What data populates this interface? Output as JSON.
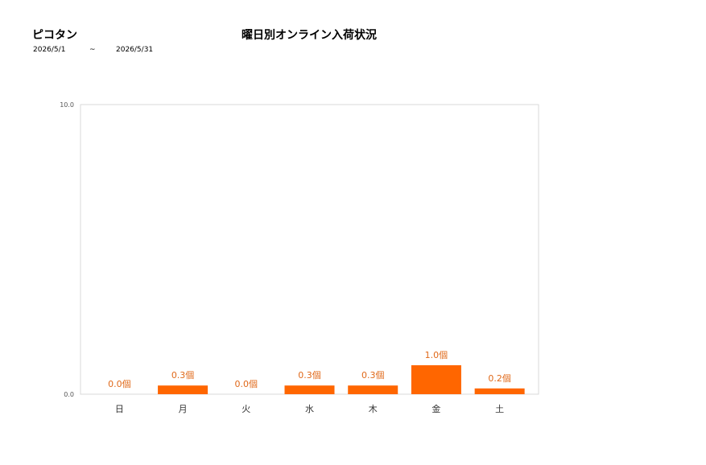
{
  "header": {
    "shop_name": "ピコタン",
    "title": "曜日別オンライン入荷状況",
    "date_start": "2026/5/1",
    "date_sep": "~",
    "date_end": "2026/5/31"
  },
  "colors": {
    "bar": "#ff6600",
    "label": "#e0691a",
    "frame": "#d9d9d9"
  },
  "chart_data": {
    "type": "bar",
    "categories": [
      "日",
      "月",
      "火",
      "水",
      "木",
      "金",
      "土"
    ],
    "values": [
      0.0,
      0.3,
      0.0,
      0.3,
      0.3,
      1.0,
      0.2
    ],
    "data_labels": [
      "0.0個",
      "0.3個",
      "0.0個",
      "0.3個",
      "0.3個",
      "1.0個",
      "0.2個"
    ],
    "ylim": [
      0,
      10
    ],
    "yticks": [
      "0.0",
      "10.0"
    ],
    "grid": false,
    "legend": "none"
  }
}
